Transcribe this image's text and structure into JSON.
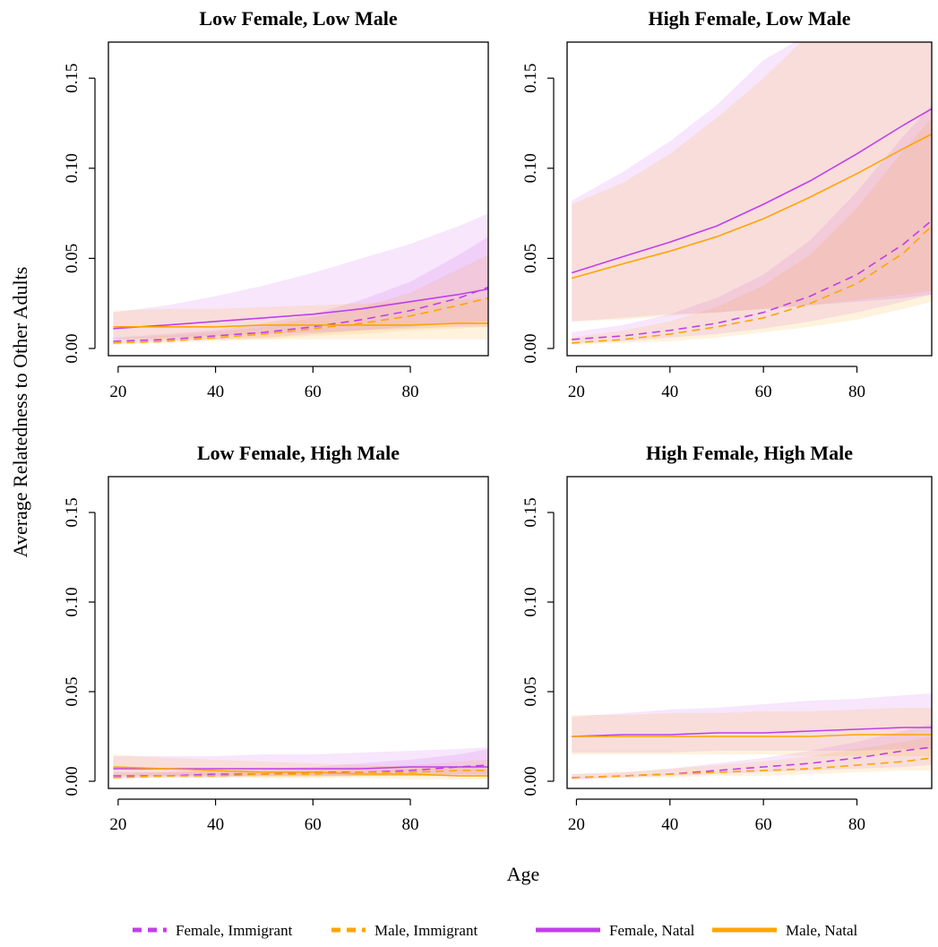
{
  "figure": {
    "xlabel": "Age",
    "ylabel": "Average Relatedness to Other Adults"
  },
  "legend": {
    "placement": "bottom",
    "items": [
      {
        "label": "Female, Immigrant",
        "color": "#bf40e8",
        "dashed": true
      },
      {
        "label": "Male, Immigrant",
        "color": "#ffa500",
        "dashed": true
      },
      {
        "label": "Female, Natal",
        "color": "#bf40e8",
        "dashed": false
      },
      {
        "label": "Male, Natal",
        "color": "#ffa500",
        "dashed": false
      }
    ]
  },
  "chart_data": [
    {
      "type": "line",
      "title": "Low Female, Low Male",
      "xlabel": "",
      "ylabel": "",
      "xlim": [
        18,
        96
      ],
      "ylim": [
        -0.004,
        0.17
      ],
      "xticks": [
        20,
        40,
        60,
        80
      ],
      "yticks": [
        0.0,
        0.05,
        0.1,
        0.15
      ],
      "yticklabels": [
        "0.00",
        "0.05",
        "0.10",
        "0.15"
      ],
      "x": [
        19,
        30,
        40,
        50,
        60,
        70,
        80,
        90,
        96
      ],
      "series": [
        {
          "name": "Female, Immigrant",
          "color": "#bf40e8",
          "dash": true,
          "values": [
            0.004,
            0.005,
            0.007,
            0.009,
            0.012,
            0.016,
            0.021,
            0.028,
            0.034
          ],
          "lower": [
            0.003,
            0.004,
            0.005,
            0.006,
            0.008,
            0.01,
            0.012,
            0.014,
            0.015
          ],
          "upper": [
            0.006,
            0.008,
            0.01,
            0.014,
            0.019,
            0.027,
            0.037,
            0.052,
            0.062
          ]
        },
        {
          "name": "Male, Immigrant",
          "color": "#ffa500",
          "dash": true,
          "values": [
            0.003,
            0.004,
            0.006,
            0.008,
            0.011,
            0.014,
            0.018,
            0.024,
            0.028
          ],
          "lower": [
            0.002,
            0.003,
            0.004,
            0.005,
            0.007,
            0.008,
            0.01,
            0.011,
            0.012
          ],
          "upper": [
            0.005,
            0.007,
            0.009,
            0.012,
            0.017,
            0.023,
            0.031,
            0.044,
            0.052
          ]
        },
        {
          "name": "Female, Natal",
          "color": "#bf40e8",
          "dash": false,
          "values": [
            0.011,
            0.013,
            0.015,
            0.017,
            0.019,
            0.022,
            0.026,
            0.03,
            0.033
          ],
          "lower": [
            0.005,
            0.006,
            0.007,
            0.008,
            0.009,
            0.01,
            0.011,
            0.012,
            0.012
          ],
          "upper": [
            0.02,
            0.024,
            0.029,
            0.035,
            0.042,
            0.05,
            0.058,
            0.068,
            0.075
          ]
        },
        {
          "name": "Male, Natal",
          "color": "#ffa500",
          "dash": false,
          "values": [
            0.012,
            0.012,
            0.012,
            0.013,
            0.013,
            0.013,
            0.013,
            0.014,
            0.014
          ],
          "lower": [
            0.005,
            0.005,
            0.005,
            0.005,
            0.005,
            0.005,
            0.005,
            0.005,
            0.005
          ],
          "upper": [
            0.021,
            0.022,
            0.022,
            0.023,
            0.024,
            0.025,
            0.026,
            0.027,
            0.028
          ]
        }
      ]
    },
    {
      "type": "line",
      "title": "High Female, Low Male",
      "xlabel": "",
      "ylabel": "",
      "xlim": [
        18,
        96
      ],
      "ylim": [
        -0.004,
        0.17
      ],
      "xticks": [
        20,
        40,
        60,
        80
      ],
      "yticks": [
        0.0,
        0.05,
        0.1,
        0.15
      ],
      "yticklabels": [
        "0.00",
        "0.05",
        "0.10",
        "0.15"
      ],
      "x": [
        19,
        30,
        40,
        50,
        60,
        70,
        80,
        90,
        96
      ],
      "series": [
        {
          "name": "Female, Immigrant",
          "color": "#bf40e8",
          "dash": true,
          "values": [
            0.005,
            0.007,
            0.01,
            0.014,
            0.02,
            0.029,
            0.041,
            0.058,
            0.071
          ],
          "lower": [
            0.003,
            0.004,
            0.006,
            0.008,
            0.011,
            0.015,
            0.02,
            0.026,
            0.03
          ],
          "upper": [
            0.009,
            0.013,
            0.019,
            0.028,
            0.041,
            0.06,
            0.087,
            0.118,
            0.135
          ]
        },
        {
          "name": "Male, Immigrant",
          "color": "#ffa500",
          "dash": true,
          "values": [
            0.003,
            0.005,
            0.008,
            0.012,
            0.017,
            0.025,
            0.036,
            0.053,
            0.068
          ],
          "lower": [
            0.002,
            0.003,
            0.004,
            0.006,
            0.009,
            0.012,
            0.016,
            0.022,
            0.026
          ],
          "upper": [
            0.006,
            0.01,
            0.015,
            0.023,
            0.035,
            0.052,
            0.078,
            0.11,
            0.128
          ]
        },
        {
          "name": "Female, Natal",
          "color": "#bf40e8",
          "dash": false,
          "values": [
            0.042,
            0.051,
            0.059,
            0.068,
            0.08,
            0.093,
            0.108,
            0.124,
            0.133
          ],
          "lower": [
            0.015,
            0.017,
            0.019,
            0.02,
            0.022,
            0.024,
            0.026,
            0.028,
            0.03
          ],
          "upper": [
            0.082,
            0.098,
            0.115,
            0.135,
            0.16,
            0.175,
            0.175,
            0.175,
            0.175
          ]
        },
        {
          "name": "Male, Natal",
          "color": "#ffa500",
          "dash": false,
          "values": [
            0.039,
            0.047,
            0.054,
            0.062,
            0.072,
            0.084,
            0.097,
            0.111,
            0.119
          ],
          "lower": [
            0.015,
            0.016,
            0.018,
            0.02,
            0.022,
            0.024,
            0.027,
            0.03,
            0.032
          ],
          "upper": [
            0.08,
            0.092,
            0.108,
            0.128,
            0.15,
            0.175,
            0.175,
            0.175,
            0.175
          ]
        }
      ]
    },
    {
      "type": "line",
      "title": "Low Female, High Male",
      "xlabel": "",
      "ylabel": "",
      "xlim": [
        18,
        96
      ],
      "ylim": [
        -0.004,
        0.17
      ],
      "xticks": [
        20,
        40,
        60,
        80
      ],
      "yticks": [
        0.0,
        0.05,
        0.1,
        0.15
      ],
      "yticklabels": [
        "0.00",
        "0.05",
        "0.10",
        "0.15"
      ],
      "x": [
        19,
        30,
        40,
        50,
        60,
        70,
        80,
        90,
        96
      ],
      "series": [
        {
          "name": "Female, Immigrant",
          "color": "#bf40e8",
          "dash": true,
          "values": [
            0.003,
            0.003,
            0.004,
            0.004,
            0.005,
            0.005,
            0.006,
            0.008,
            0.009
          ],
          "lower": [
            0.002,
            0.002,
            0.002,
            0.003,
            0.003,
            0.003,
            0.003,
            0.004,
            0.004
          ],
          "upper": [
            0.005,
            0.005,
            0.006,
            0.007,
            0.008,
            0.01,
            0.012,
            0.015,
            0.018
          ]
        },
        {
          "name": "Male, Immigrant",
          "color": "#ffa500",
          "dash": true,
          "values": [
            0.002,
            0.003,
            0.003,
            0.004,
            0.004,
            0.005,
            0.005,
            0.006,
            0.006
          ],
          "lower": [
            0.001,
            0.002,
            0.002,
            0.002,
            0.002,
            0.003,
            0.003,
            0.003,
            0.003
          ],
          "upper": [
            0.004,
            0.005,
            0.006,
            0.006,
            0.007,
            0.008,
            0.009,
            0.011,
            0.012
          ]
        },
        {
          "name": "Female, Natal",
          "color": "#bf40e8",
          "dash": false,
          "values": [
            0.007,
            0.007,
            0.007,
            0.007,
            0.007,
            0.007,
            0.008,
            0.008,
            0.008
          ],
          "lower": [
            0.003,
            0.003,
            0.003,
            0.003,
            0.003,
            0.003,
            0.003,
            0.003,
            0.003
          ],
          "upper": [
            0.014,
            0.014,
            0.014,
            0.015,
            0.015,
            0.016,
            0.017,
            0.018,
            0.019
          ]
        },
        {
          "name": "Male, Natal",
          "color": "#ffa500",
          "dash": false,
          "values": [
            0.008,
            0.007,
            0.006,
            0.005,
            0.005,
            0.004,
            0.004,
            0.003,
            0.003
          ],
          "lower": [
            0.004,
            0.003,
            0.003,
            0.002,
            0.002,
            0.002,
            0.001,
            0.001,
            0.001
          ],
          "upper": [
            0.015,
            0.013,
            0.012,
            0.011,
            0.01,
            0.009,
            0.008,
            0.008,
            0.007
          ]
        }
      ]
    },
    {
      "type": "line",
      "title": "High Female, High Male",
      "xlabel": "",
      "ylabel": "",
      "xlim": [
        18,
        96
      ],
      "ylim": [
        -0.004,
        0.17
      ],
      "xticks": [
        20,
        40,
        60,
        80
      ],
      "yticks": [
        0.0,
        0.05,
        0.1,
        0.15
      ],
      "yticklabels": [
        "0.00",
        "0.05",
        "0.10",
        "0.15"
      ],
      "x": [
        19,
        30,
        40,
        50,
        60,
        70,
        80,
        90,
        96
      ],
      "series": [
        {
          "name": "Female, Immigrant",
          "color": "#bf40e8",
          "dash": true,
          "values": [
            0.002,
            0.003,
            0.004,
            0.006,
            0.008,
            0.01,
            0.013,
            0.017,
            0.019
          ],
          "lower": [
            0.001,
            0.002,
            0.003,
            0.004,
            0.005,
            0.006,
            0.007,
            0.008,
            0.009
          ],
          "upper": [
            0.004,
            0.005,
            0.007,
            0.01,
            0.013,
            0.017,
            0.022,
            0.028,
            0.032
          ]
        },
        {
          "name": "Male, Immigrant",
          "color": "#ffa500",
          "dash": true,
          "values": [
            0.002,
            0.003,
            0.004,
            0.005,
            0.006,
            0.007,
            0.009,
            0.011,
            0.013
          ],
          "lower": [
            0.001,
            0.002,
            0.002,
            0.003,
            0.003,
            0.004,
            0.005,
            0.006,
            0.006
          ],
          "upper": [
            0.004,
            0.005,
            0.007,
            0.009,
            0.011,
            0.014,
            0.018,
            0.022,
            0.025
          ]
        },
        {
          "name": "Female, Natal",
          "color": "#bf40e8",
          "dash": false,
          "values": [
            0.025,
            0.026,
            0.026,
            0.027,
            0.027,
            0.028,
            0.029,
            0.03,
            0.03
          ],
          "lower": [
            0.016,
            0.016,
            0.016,
            0.017,
            0.017,
            0.017,
            0.017,
            0.018,
            0.018
          ],
          "upper": [
            0.036,
            0.038,
            0.04,
            0.041,
            0.043,
            0.045,
            0.046,
            0.048,
            0.049
          ]
        },
        {
          "name": "Male, Natal",
          "color": "#ffa500",
          "dash": false,
          "values": [
            0.025,
            0.025,
            0.025,
            0.025,
            0.025,
            0.025,
            0.026,
            0.026,
            0.026
          ],
          "lower": [
            0.015,
            0.015,
            0.015,
            0.015,
            0.015,
            0.014,
            0.014,
            0.014,
            0.014
          ],
          "upper": [
            0.037,
            0.037,
            0.038,
            0.038,
            0.039,
            0.039,
            0.04,
            0.041,
            0.041
          ]
        }
      ]
    }
  ]
}
